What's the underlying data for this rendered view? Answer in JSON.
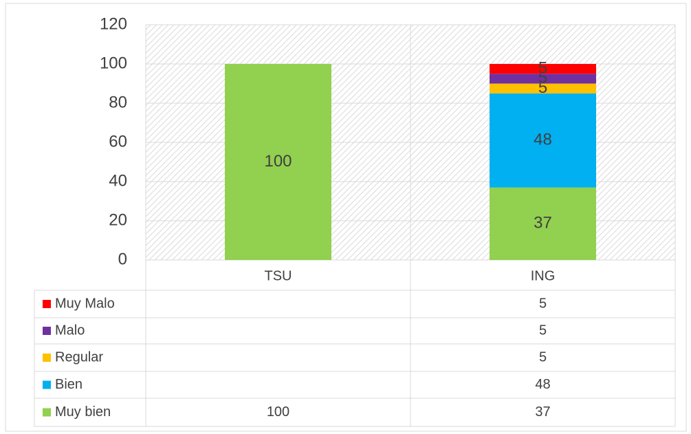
{
  "chart_data": {
    "type": "bar",
    "stacked": true,
    "categories": [
      "TSU",
      "ING"
    ],
    "series": [
      {
        "name": "Muy bien",
        "color": "#92d050",
        "values": [
          100,
          37
        ]
      },
      {
        "name": "Bien",
        "color": "#00b0f0",
        "values": [
          null,
          48
        ]
      },
      {
        "name": "Regular",
        "color": "#ffc000",
        "values": [
          null,
          5
        ]
      },
      {
        "name": "Malo",
        "color": "#7030a0",
        "values": [
          null,
          5
        ]
      },
      {
        "name": "Muy Malo",
        "color": "#ff0000",
        "values": [
          null,
          5
        ]
      }
    ],
    "ylim": [
      0,
      120
    ],
    "yticks": [
      0,
      20,
      40,
      60,
      80,
      100,
      120
    ],
    "grid": true
  }
}
